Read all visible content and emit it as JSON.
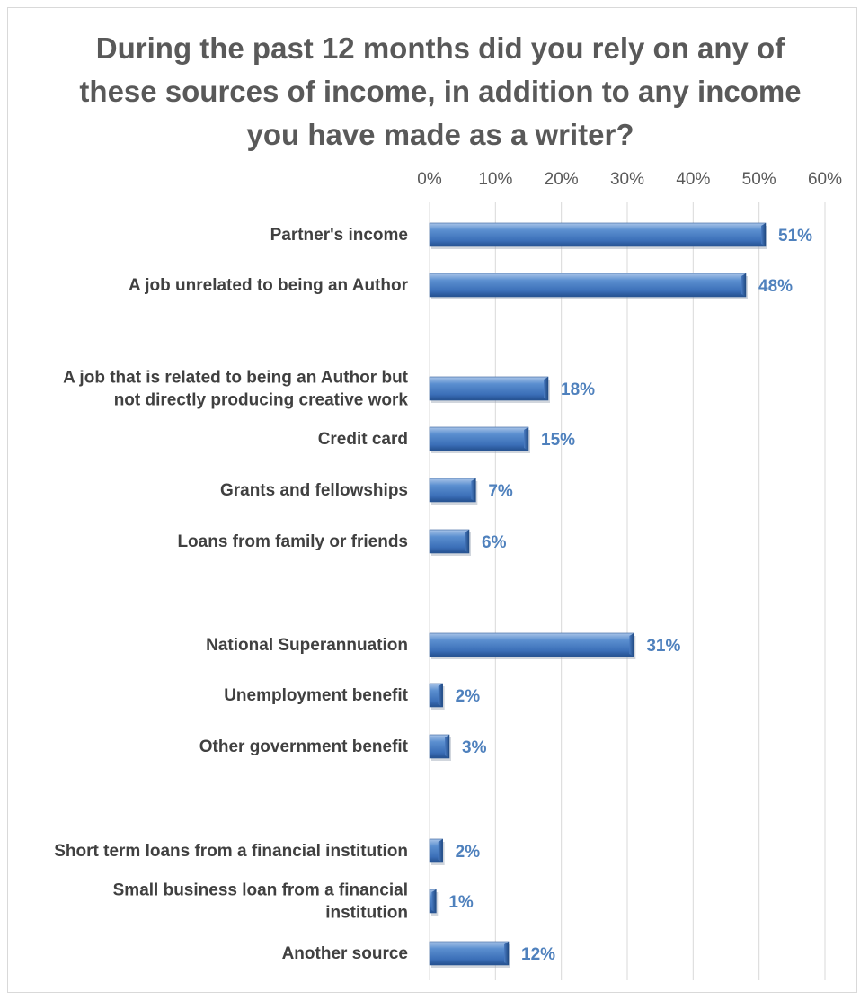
{
  "chart_data": {
    "type": "bar",
    "orientation": "horizontal",
    "title": "During the past 12 months did you rely on any of these sources of income, in addition to any income you have made as a writer?",
    "xlabel": "",
    "ylabel": "",
    "xlim": [
      0,
      60
    ],
    "x_ticks": [
      "0%",
      "10%",
      "20%",
      "30%",
      "40%",
      "50%",
      "60%"
    ],
    "x_tick_values": [
      0,
      10,
      20,
      30,
      40,
      50,
      60
    ],
    "axis_position": "top",
    "grid": true,
    "legend": "none",
    "categories": [
      "Partner's income",
      "A job unrelated to being an Author",
      "A job that is related to being an Author but not directly producing creative work",
      "Credit card",
      "Grants and fellowships",
      "Loans from family or friends",
      "National Superannuation",
      "Unemployment benefit",
      "Other government benefit",
      "Short term loans from a financial institution",
      "Small business loan from a financial institution",
      "Another source"
    ],
    "values": [
      51,
      48,
      18,
      15,
      7,
      6,
      31,
      2,
      3,
      2,
      1,
      12
    ],
    "data_labels": [
      "51%",
      "48%",
      "18%",
      "15%",
      "7%",
      "6%",
      "31%",
      "2%",
      "3%",
      "2%",
      "1%",
      "12%"
    ],
    "bar_color": "#4f81bd",
    "label_color": "#4f81bd"
  }
}
